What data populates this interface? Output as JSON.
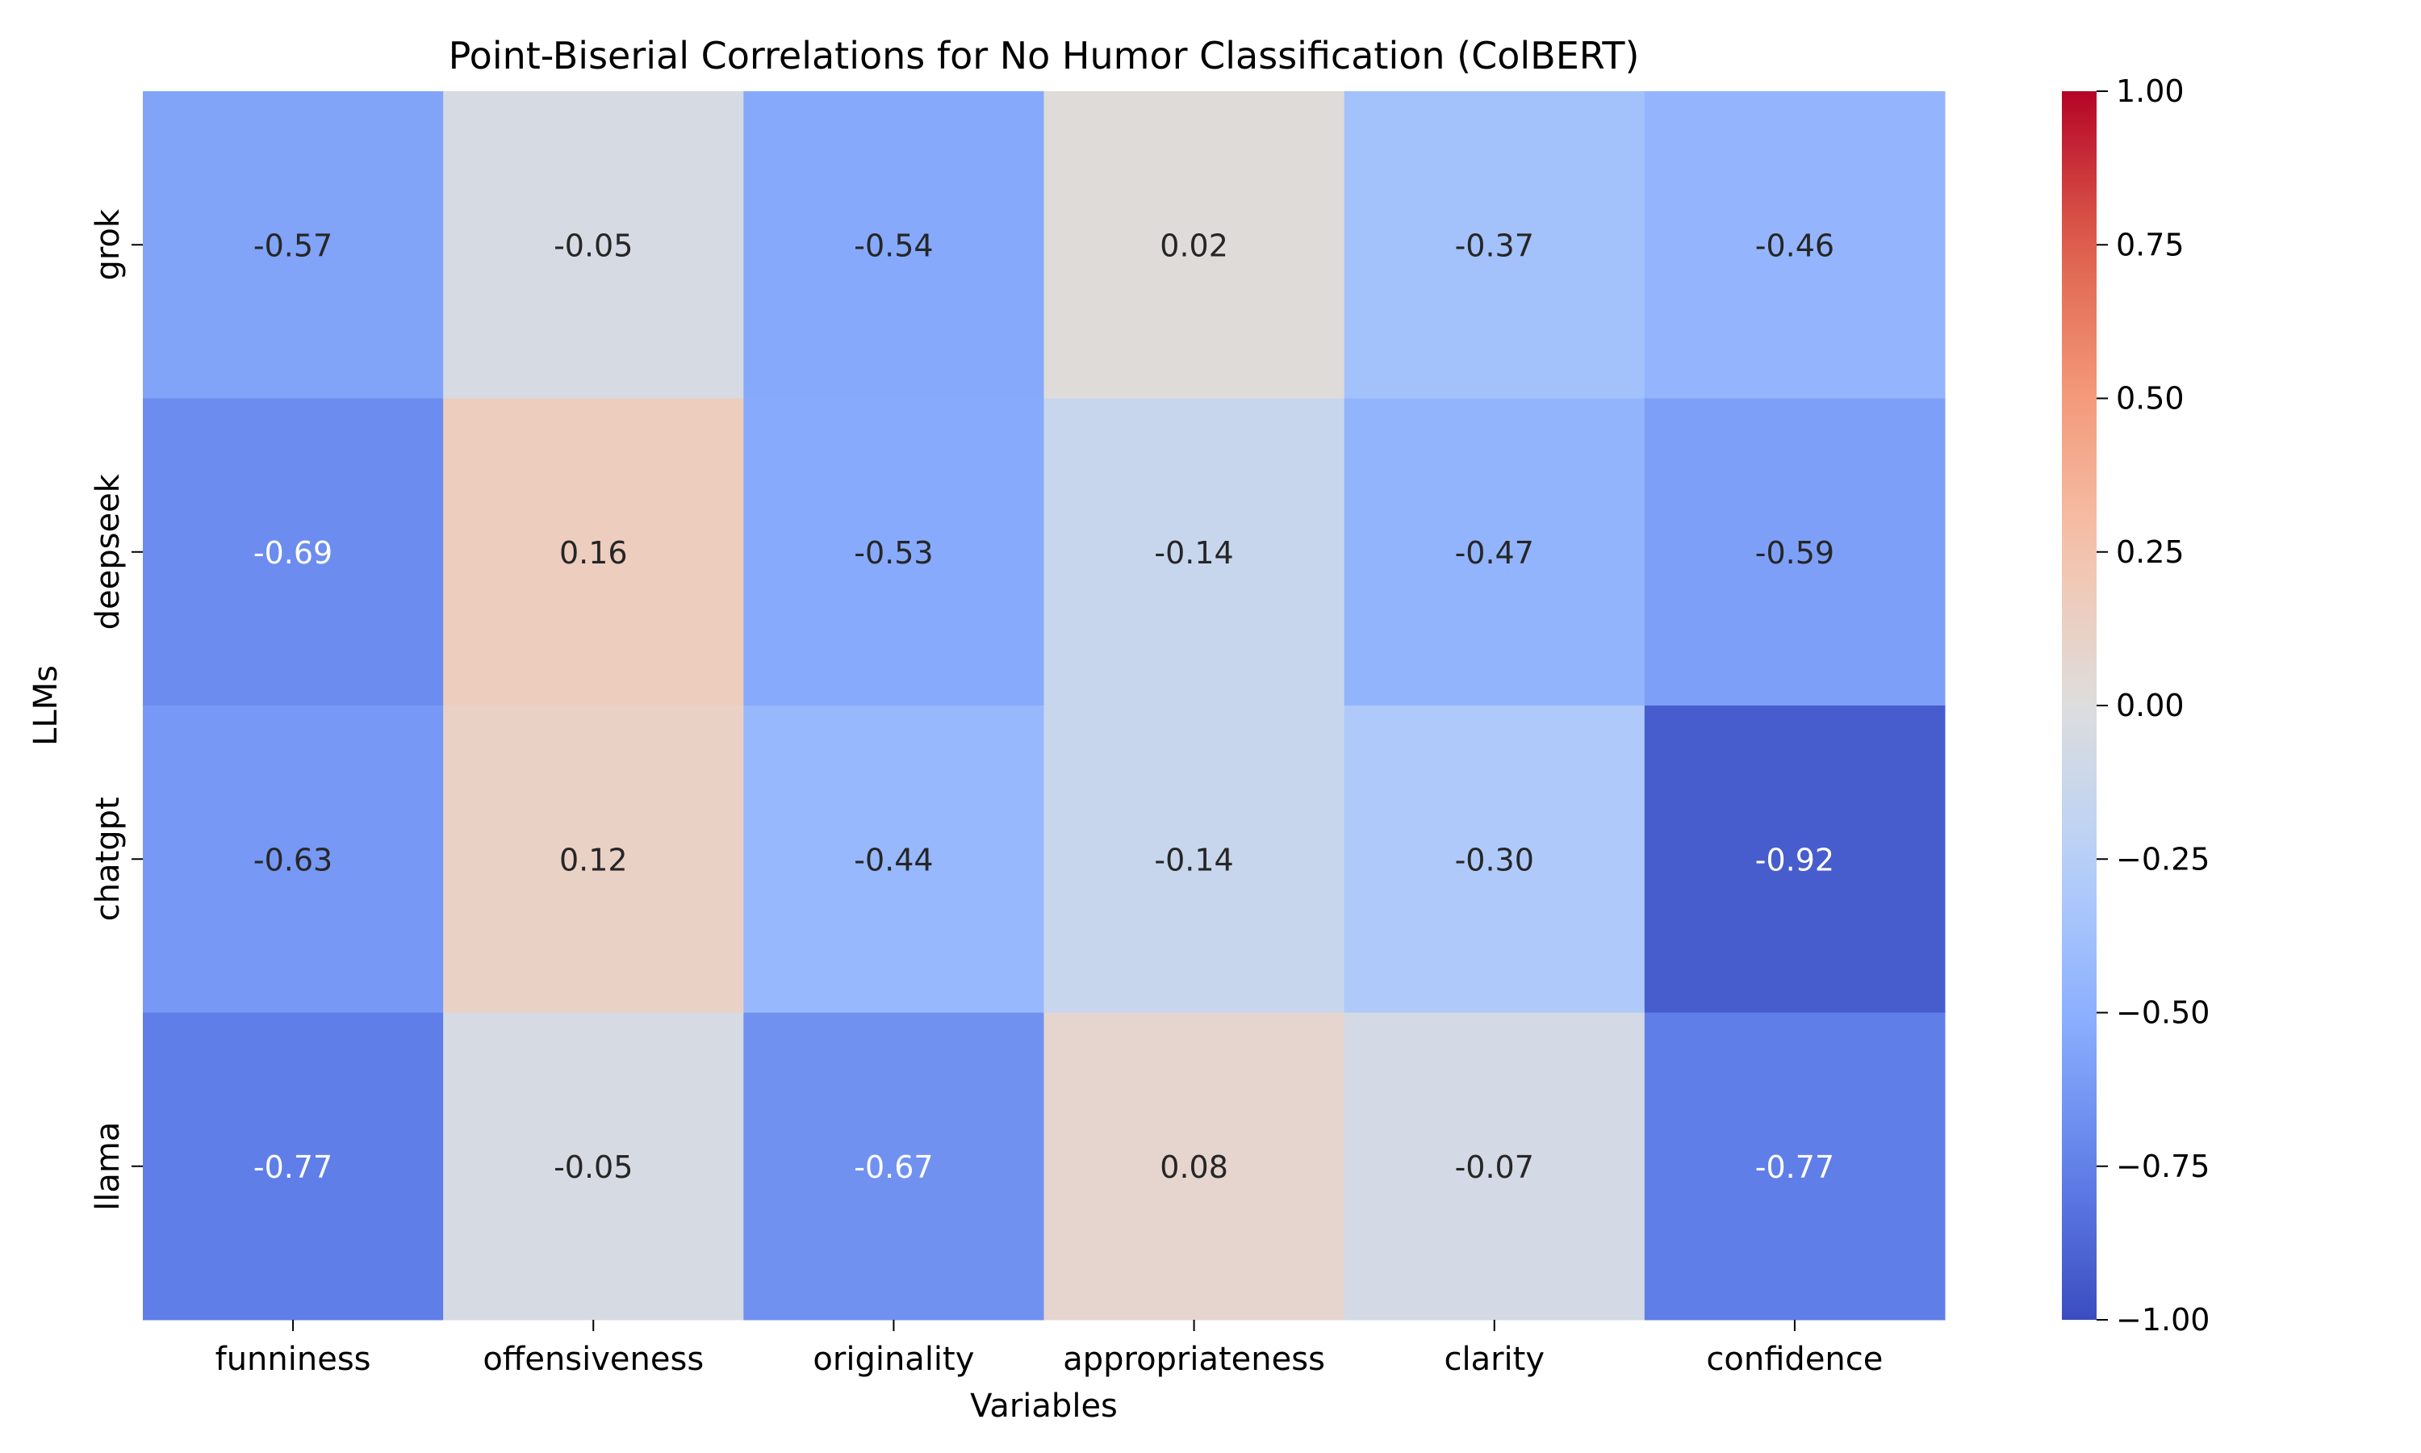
{
  "chart_data": {
    "type": "heatmap",
    "title": "Point-Biserial Correlations for No Humor Classification (ColBERT)",
    "xlabel": "Variables",
    "ylabel": "LLMs",
    "x_categories": [
      "funniness",
      "offensiveness",
      "originality",
      "appropriateness",
      "clarity",
      "confidence"
    ],
    "y_categories": [
      "grok",
      "deepseek",
      "chatgpt",
      "llama"
    ],
    "values": [
      [
        -0.57,
        -0.05,
        -0.54,
        0.02,
        -0.37,
        -0.46
      ],
      [
        -0.69,
        0.16,
        -0.53,
        -0.14,
        -0.47,
        -0.59
      ],
      [
        -0.63,
        0.12,
        -0.44,
        -0.14,
        -0.3,
        -0.92
      ],
      [
        -0.77,
        -0.05,
        -0.67,
        0.08,
        -0.07,
        -0.77
      ]
    ],
    "value_labels": [
      [
        "-0.57",
        "-0.05",
        "-0.54",
        "0.02",
        "-0.37",
        "-0.46"
      ],
      [
        "-0.69",
        "0.16",
        "-0.53",
        "-0.14",
        "-0.47",
        "-0.59"
      ],
      [
        "-0.63",
        "0.12",
        "-0.44",
        "-0.14",
        "-0.30",
        "-0.92"
      ],
      [
        "-0.77",
        "-0.05",
        "-0.67",
        "0.08",
        "-0.07",
        "-0.77"
      ]
    ],
    "colorbar": {
      "range": [
        -1.0,
        1.0
      ],
      "colormap": "coolwarm",
      "ticks": [
        1.0,
        0.75,
        0.5,
        0.25,
        0.0,
        -0.25,
        -0.5,
        -0.75,
        -1.0
      ],
      "tick_labels": [
        "1.00",
        "0.75",
        "0.50",
        "0.25",
        "0.00",
        "−0.25",
        "−0.50",
        "−0.75",
        "−1.00"
      ]
    }
  }
}
